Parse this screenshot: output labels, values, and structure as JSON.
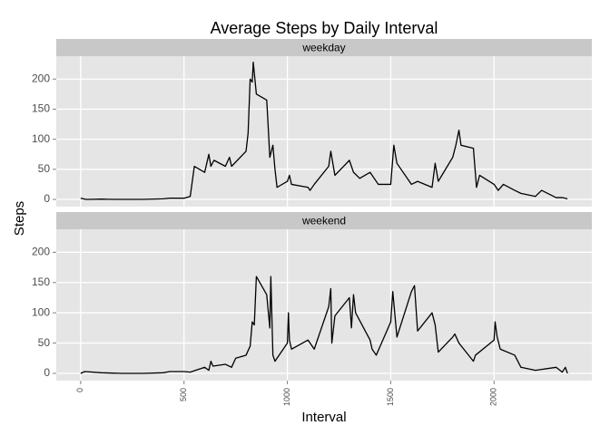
{
  "title": "Average Steps by Daily Interval",
  "x_label": "Interval",
  "y_label": "Steps",
  "chart_data": [
    {
      "type": "line",
      "panel": "weekday",
      "color": "#000000",
      "x": [
        0,
        25,
        50,
        100,
        130,
        200,
        300,
        400,
        430,
        500,
        530,
        550,
        600,
        610,
        620,
        630,
        645,
        700,
        720,
        730,
        800,
        810,
        820,
        830,
        835,
        840,
        850,
        900,
        905,
        915,
        930,
        940,
        950,
        1000,
        1010,
        1020,
        1100,
        1110,
        1130,
        1200,
        1210,
        1230,
        1300,
        1320,
        1350,
        1400,
        1440,
        1500,
        1515,
        1530,
        1600,
        1630,
        1700,
        1715,
        1730,
        1800,
        1815,
        1830,
        1840,
        1900,
        1915,
        1930,
        2000,
        2020,
        2045,
        2100,
        2130,
        2200,
        2230,
        2300,
        2330,
        2355
      ],
      "values": [
        2,
        0,
        0,
        0.5,
        0.2,
        0,
        0,
        1,
        2,
        2,
        5,
        55,
        45,
        60,
        75,
        55,
        65,
        55,
        70,
        55,
        80,
        110,
        200,
        195,
        228,
        210,
        175,
        165,
        135,
        70,
        90,
        50,
        20,
        30,
        40,
        25,
        20,
        15,
        25,
        55,
        80,
        40,
        65,
        45,
        35,
        45,
        25,
        25,
        90,
        60,
        25,
        30,
        20,
        60,
        30,
        70,
        90,
        115,
        90,
        85,
        20,
        40,
        25,
        15,
        25,
        15,
        10,
        5,
        15,
        3,
        3,
        1
      ],
      "xlim": [
        -118,
        2473
      ],
      "ylim": [
        -12,
        238
      ],
      "xticks": [
        0,
        500,
        1000,
        1500,
        2000
      ],
      "yticks": [
        0,
        50,
        100,
        150,
        200
      ]
    },
    {
      "type": "line",
      "panel": "weekend",
      "color": "#000000",
      "x": [
        0,
        20,
        100,
        200,
        300,
        400,
        430,
        500,
        530,
        600,
        620,
        630,
        640,
        700,
        730,
        750,
        800,
        820,
        830,
        840,
        850,
        900,
        915,
        920,
        930,
        940,
        1000,
        1005,
        1010,
        1020,
        1100,
        1130,
        1200,
        1210,
        1215,
        1230,
        1300,
        1310,
        1320,
        1330,
        1400,
        1410,
        1430,
        1500,
        1510,
        1530,
        1600,
        1615,
        1630,
        1700,
        1715,
        1730,
        1800,
        1810,
        1830,
        1900,
        1910,
        2000,
        2005,
        2015,
        2030,
        2100,
        2130,
        2200,
        2300,
        2330,
        2345,
        2355
      ],
      "values": [
        0,
        3,
        1,
        0,
        0,
        1,
        3,
        3,
        2,
        10,
        5,
        20,
        12,
        15,
        10,
        25,
        30,
        45,
        85,
        80,
        160,
        130,
        75,
        160,
        30,
        20,
        50,
        100,
        55,
        40,
        55,
        40,
        110,
        140,
        50,
        95,
        125,
        75,
        130,
        100,
        55,
        40,
        30,
        85,
        135,
        60,
        135,
        145,
        70,
        100,
        80,
        35,
        60,
        65,
        50,
        20,
        30,
        55,
        85,
        60,
        40,
        30,
        10,
        5,
        10,
        2,
        10,
        0
      ],
      "xlim": [
        -118,
        2473
      ],
      "ylim": [
        -12,
        238
      ],
      "xticks": [
        0,
        500,
        1000,
        1500,
        2000
      ],
      "yticks": [
        0,
        50,
        100,
        150,
        200
      ]
    }
  ]
}
